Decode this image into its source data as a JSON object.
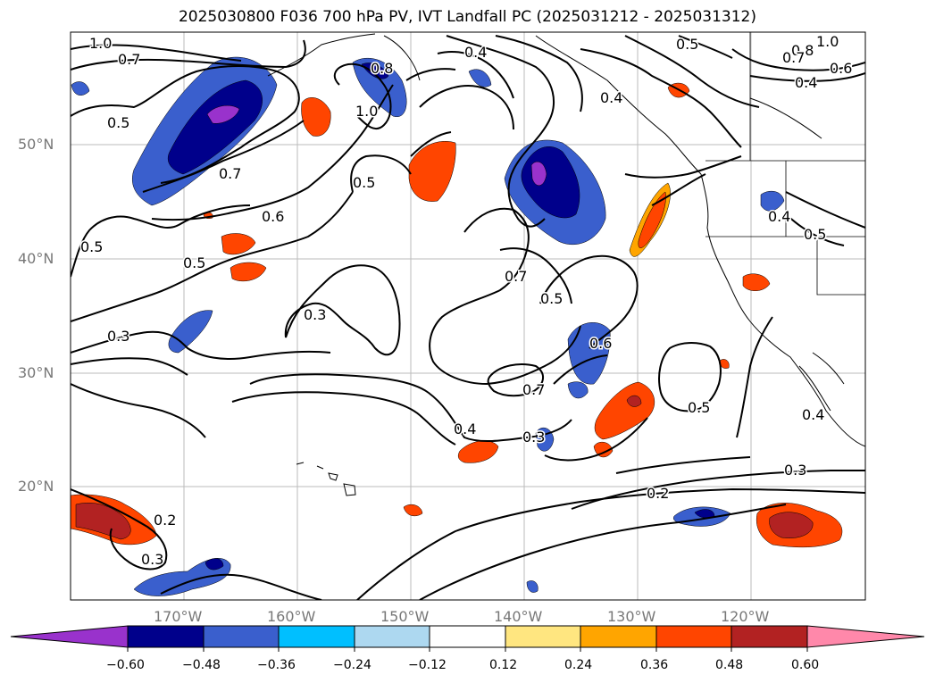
{
  "title": "2025030800 F036 700 hPa PV, IVT Landfall PC (2025031212 - 2025031312)",
  "lat_labels": [
    "50°N",
    "40°N",
    "30°N",
    "20°N"
  ],
  "lon_labels": [
    "170°W",
    "160°W",
    "150°W",
    "140°W",
    "130°W",
    "120°W"
  ],
  "contour_labels": [
    "1.0",
    "0.7",
    "0.5",
    "0.7",
    "0.6",
    "0.5",
    "0.5",
    "0.3",
    "0.3",
    "0.4",
    "0.5",
    "1.0",
    "0.8",
    "0.4",
    "0.5",
    "0.7",
    "0.5",
    "0.6",
    "0.7",
    "0.4",
    "0.3",
    "0.2",
    "0.3",
    "0.2",
    "1.0",
    "0.8",
    "0.7",
    "0.6",
    "0.4",
    "0.5",
    "0.4",
    "0.5",
    "0.3",
    "0.4"
  ],
  "colorbar": {
    "ticks": [
      "−0.60",
      "−0.48",
      "−0.36",
      "−0.24",
      "−0.12",
      "0.12",
      "0.24",
      "0.36",
      "0.48",
      "0.60"
    ],
    "colors": [
      "#9932cc",
      "#00008b",
      "#3a5fcd",
      "#00bfff",
      "#add8f0",
      "#ffffff",
      "#ffe680",
      "#ffa500",
      "#ff4500",
      "#b22222",
      "#ff88aa"
    ]
  }
}
